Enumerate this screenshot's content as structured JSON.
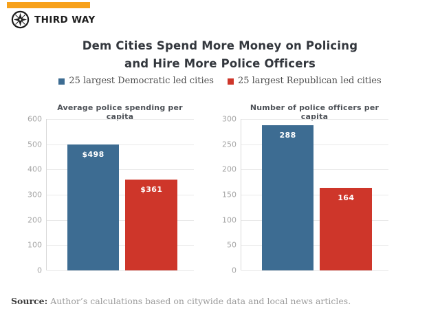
{
  "brand": {
    "name": "THIRD WAY",
    "accent_color": "#F7A11B",
    "icon": "compass-icon"
  },
  "title": {
    "line1": "Dem Cities Spend More Money on Policing",
    "line2": "and Hire More Police Officers"
  },
  "legend": [
    {
      "label": "25 largest Democratic led cities",
      "color": "#3D6C92"
    },
    {
      "label": "25 largest Republican led cities",
      "color": "#CE362A"
    }
  ],
  "chart_data": [
    {
      "type": "bar",
      "title": "Average police spending per capita",
      "categories": [
        "25 largest Democratic led cities",
        "25 largest Republican led cities"
      ],
      "values": [
        498,
        361
      ],
      "value_labels": [
        "$498",
        "$361"
      ],
      "colors": [
        "#3D6C92",
        "#CE362A"
      ],
      "xlabel": "",
      "ylabel": "",
      "ylim": [
        0,
        600
      ],
      "ytick_step": 100,
      "grid": true,
      "legend_position": "top-center-shared"
    },
    {
      "type": "bar",
      "title": "Number of police officers per capita",
      "categories": [
        "25 largest Democratic led cities",
        "25 largest Republican led cities"
      ],
      "values": [
        288,
        164
      ],
      "value_labels": [
        "288",
        "164"
      ],
      "colors": [
        "#3D6C92",
        "#CE362A"
      ],
      "xlabel": "",
      "ylabel": "",
      "ylim": [
        0,
        300
      ],
      "ytick_step": 50,
      "grid": true,
      "legend_position": "top-center-shared"
    }
  ],
  "source": {
    "label": "Source:",
    "text": "Author’s calculations based on citywide data and local news articles."
  }
}
